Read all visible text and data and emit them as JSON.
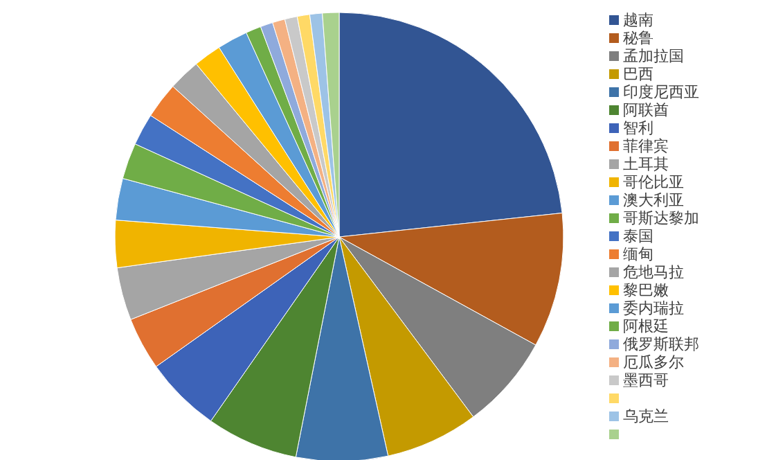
{
  "chart_data": {
    "type": "pie",
    "legend": "right",
    "categories": [
      "越南",
      "秘鲁",
      "孟加拉国",
      "巴西",
      "印度尼西亚",
      "阿联酋",
      "智利",
      "菲律宾",
      "土耳其",
      "哥伦比亚",
      "澳大利亚",
      "哥斯达黎加",
      "泰国",
      "缅甸",
      "危地马拉",
      "黎巴嫩",
      "委内瑞拉",
      "阿根廷",
      "俄罗斯联邦",
      "厄瓜多尔",
      "墨西哥",
      null,
      "乌克兰",
      null
    ],
    "values": [
      23.3,
      9.7,
      6.8,
      6.7,
      6.6,
      6.6,
      5.5,
      3.8,
      3.8,
      3.4,
      3.0,
      2.6,
      2.3,
      2.6,
      2.3,
      2.0,
      2.2,
      1.1,
      0.9,
      0.9,
      0.9,
      0.9,
      0.9,
      1.2
    ],
    "colors": [
      "#325593",
      "#b35c1e",
      "#7f7f7f",
      "#c49a00",
      "#3e73a8",
      "#4e8531",
      "#3d63b8",
      "#e07030",
      "#a5a5a5",
      "#f0b400",
      "#5b9bd5",
      "#70ad47",
      "#4472c4",
      "#ed7d31",
      "#a5a5a5",
      "#ffc000",
      "#5b9bd5",
      "#70ad47",
      "#8faadc",
      "#f4b183",
      "#c9c9c9",
      "#ffd966",
      "#9dc3e6",
      "#a9d18e"
    ]
  }
}
